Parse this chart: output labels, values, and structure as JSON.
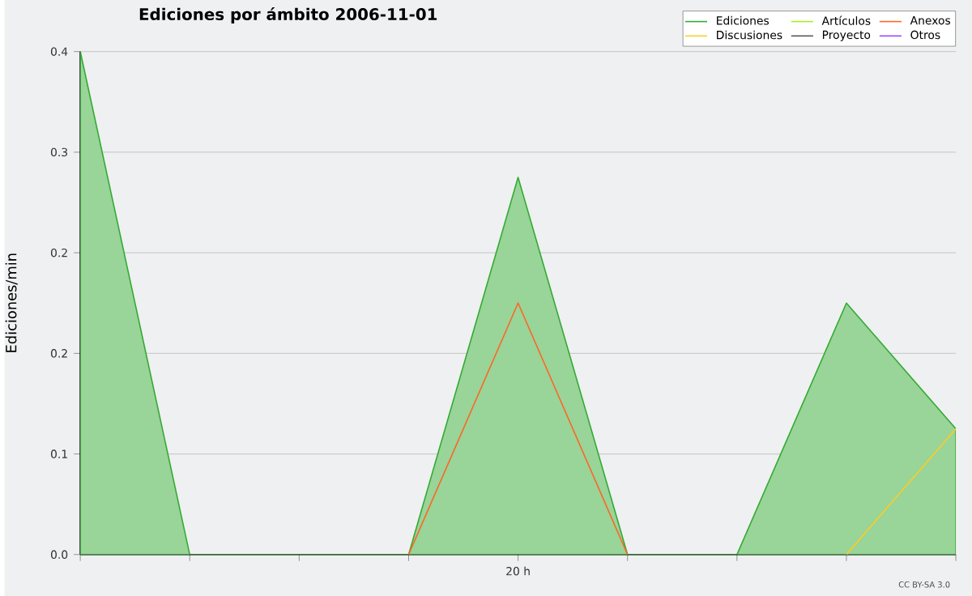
{
  "chart_data": {
    "type": "line",
    "title": "Ediciones por ámbito  2006-11-01",
    "ylabel": "Ediciones/min",
    "categories": [
      null,
      null,
      null,
      null,
      "20 h",
      null,
      null,
      null,
      null
    ],
    "series": [
      {
        "name": "Ediciones",
        "type": "area",
        "color": "#33aa33",
        "values": [
          0.4,
          0,
          0,
          0,
          0.3,
          0,
          0,
          0.2,
          0.1
        ]
      },
      {
        "name": "Artículos",
        "color": "#aaee22",
        "values": [
          null,
          null,
          null,
          null,
          null,
          null,
          null,
          null,
          null
        ]
      },
      {
        "name": "Anexos",
        "color": "#ff6622",
        "values": [
          null,
          null,
          null,
          0,
          0.2,
          0,
          null,
          null,
          null
        ]
      },
      {
        "name": "Discusiones",
        "color": "#ffcc22",
        "values": [
          null,
          null,
          null,
          null,
          null,
          null,
          null,
          0,
          0.1
        ]
      },
      {
        "name": "Proyecto",
        "color": "#555555",
        "values": [
          null,
          null,
          null,
          null,
          null,
          null,
          null,
          null,
          null
        ]
      },
      {
        "name": "Otros",
        "color": "#9944ff",
        "values": [
          null,
          null,
          null,
          null,
          null,
          null,
          null,
          null,
          null
        ]
      }
    ],
    "ylim": [
      0,
      0.4
    ],
    "yticks": [
      {
        "value": 0,
        "label": "0.0"
      },
      {
        "value": 0.08,
        "label": "0.1"
      },
      {
        "value": 0.16,
        "label": "0.2"
      },
      {
        "value": 0.24,
        "label": "0.2"
      },
      {
        "value": 0.32,
        "label": "0.3"
      },
      {
        "value": 0.4,
        "label": "0.4"
      }
    ],
    "grid": "y",
    "legend": "top right",
    "annotations": [
      "CC BY-SA 3.0"
    ]
  }
}
